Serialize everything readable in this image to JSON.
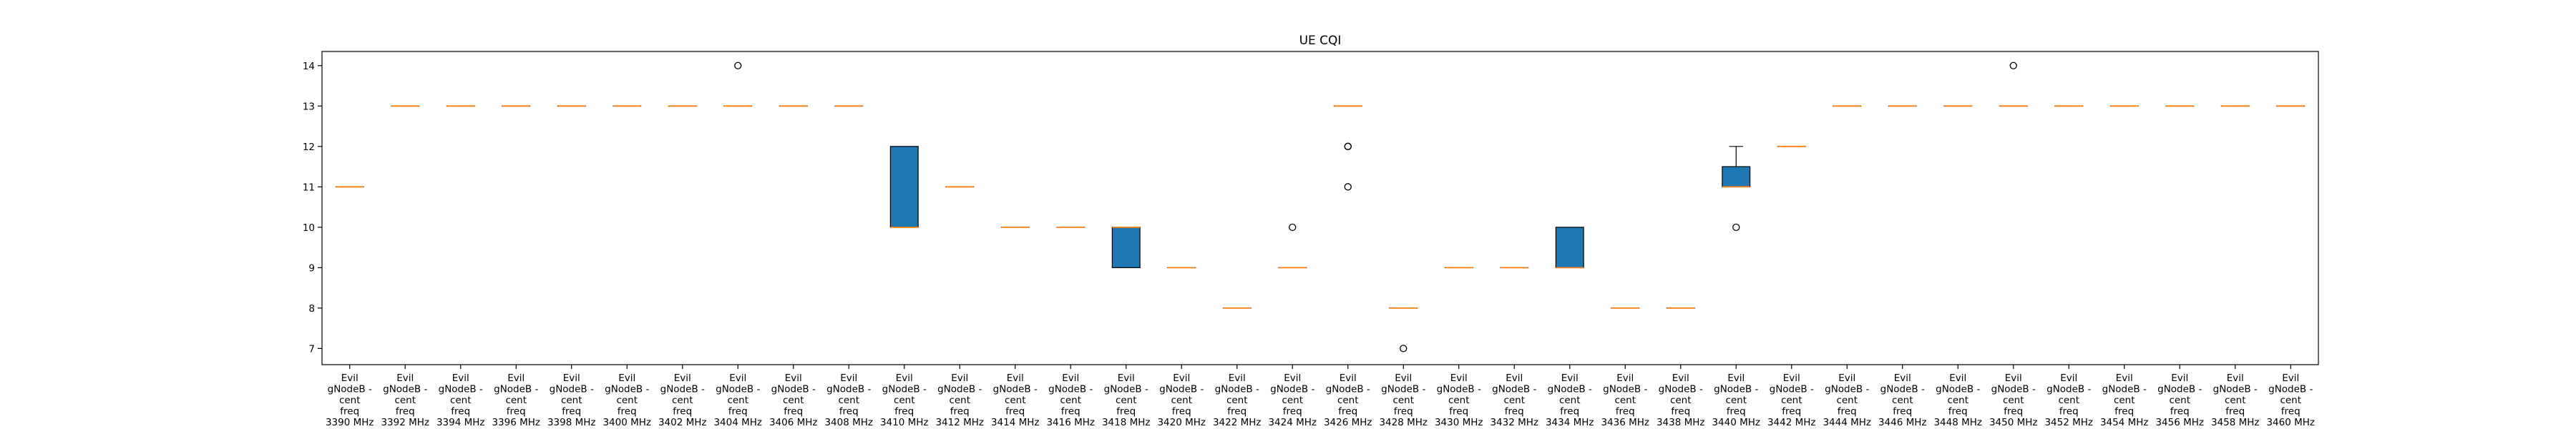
{
  "chart_data": {
    "type": "boxplot",
    "title": "UE CQI",
    "xlabel": "",
    "ylabel": "",
    "ylim": [
      6.6,
      14.35
    ],
    "yticks": [
      7,
      8,
      9,
      10,
      11,
      12,
      13,
      14
    ],
    "grid": false,
    "colors": {
      "box_fill": "#1f77b4",
      "median": "#ff7f0e",
      "whisker": "#000000",
      "flier": "#000000"
    },
    "categories": [
      "Evil gNodeB - cent freq 3390 MHz",
      "Evil gNodeB - cent freq 3392 MHz",
      "Evil gNodeB - cent freq 3394 MHz",
      "Evil gNodeB - cent freq 3396 MHz",
      "Evil gNodeB - cent freq 3398 MHz",
      "Evil gNodeB - cent freq 3400 MHz",
      "Evil gNodeB - cent freq 3402 MHz",
      "Evil gNodeB - cent freq 3404 MHz",
      "Evil gNodeB - cent freq 3406 MHz",
      "Evil gNodeB - cent freq 3408 MHz",
      "Evil gNodeB - cent freq 3410 MHz",
      "Evil gNodeB - cent freq 3412 MHz",
      "Evil gNodeB - cent freq 3414 MHz",
      "Evil gNodeB - cent freq 3416 MHz",
      "Evil gNodeB - cent freq 3418 MHz",
      "Evil gNodeB - cent freq 3420 MHz",
      "Evil gNodeB - cent freq 3422 MHz",
      "Evil gNodeB - cent freq 3424 MHz",
      "Evil gNodeB - cent freq 3426 MHz",
      "Evil gNodeB - cent freq 3428 MHz",
      "Evil gNodeB - cent freq 3430 MHz",
      "Evil gNodeB - cent freq 3432 MHz",
      "Evil gNodeB - cent freq 3434 MHz",
      "Evil gNodeB - cent freq 3436 MHz",
      "Evil gNodeB - cent freq 3438 MHz",
      "Evil gNodeB - cent freq 3440 MHz",
      "Evil gNodeB - cent freq 3442 MHz",
      "Evil gNodeB - cent freq 3444 MHz",
      "Evil gNodeB - cent freq 3446 MHz",
      "Evil gNodeB - cent freq 3448 MHz",
      "Evil gNodeB - cent freq 3450 MHz",
      "Evil gNodeB - cent freq 3452 MHz",
      "Evil gNodeB - cent freq 3454 MHz",
      "Evil gNodeB - cent freq 3456 MHz",
      "Evil gNodeB - cent freq 3458 MHz",
      "Evil gNodeB - cent freq 3460 MHz"
    ],
    "tick_label_lines": [
      "Evil",
      "gNodeB -",
      "cent",
      "freq"
    ],
    "tick_label_freqs": [
      "3390 MHz",
      "3392 MHz",
      "3394 MHz",
      "3396 MHz",
      "3398 MHz",
      "3400 MHz",
      "3402 MHz",
      "3404 MHz",
      "3406 MHz",
      "3408 MHz",
      "3410 MHz",
      "3412 MHz",
      "3414 MHz",
      "3416 MHz",
      "3418 MHz",
      "3420 MHz",
      "3422 MHz",
      "3424 MHz",
      "3426 MHz",
      "3428 MHz",
      "3430 MHz",
      "3432 MHz",
      "3434 MHz",
      "3436 MHz",
      "3438 MHz",
      "3440 MHz",
      "3442 MHz",
      "3444 MHz",
      "3446 MHz",
      "3448 MHz",
      "3450 MHz",
      "3452 MHz",
      "3454 MHz",
      "3456 MHz",
      "3458 MHz",
      "3460 MHz"
    ],
    "boxes": [
      {
        "q1": 11,
        "median": 11,
        "q3": 11,
        "whislo": 11,
        "whishi": 11,
        "fliers": []
      },
      {
        "q1": 13,
        "median": 13,
        "q3": 13,
        "whislo": 13,
        "whishi": 13,
        "fliers": []
      },
      {
        "q1": 13,
        "median": 13,
        "q3": 13,
        "whislo": 13,
        "whishi": 13,
        "fliers": []
      },
      {
        "q1": 13,
        "median": 13,
        "q3": 13,
        "whislo": 13,
        "whishi": 13,
        "fliers": []
      },
      {
        "q1": 13,
        "median": 13,
        "q3": 13,
        "whislo": 13,
        "whishi": 13,
        "fliers": []
      },
      {
        "q1": 13,
        "median": 13,
        "q3": 13,
        "whislo": 13,
        "whishi": 13,
        "fliers": []
      },
      {
        "q1": 13,
        "median": 13,
        "q3": 13,
        "whislo": 13,
        "whishi": 13,
        "fliers": []
      },
      {
        "q1": 13,
        "median": 13,
        "q3": 13,
        "whislo": 13,
        "whishi": 13,
        "fliers": [
          14
        ]
      },
      {
        "q1": 13,
        "median": 13,
        "q3": 13,
        "whislo": 13,
        "whishi": 13,
        "fliers": []
      },
      {
        "q1": 13,
        "median": 13,
        "q3": 13,
        "whislo": 13,
        "whishi": 13,
        "fliers": []
      },
      {
        "q1": 10,
        "median": 10,
        "q3": 12,
        "whislo": 10,
        "whishi": 12,
        "fliers": []
      },
      {
        "q1": 11,
        "median": 11,
        "q3": 11,
        "whislo": 11,
        "whishi": 11,
        "fliers": []
      },
      {
        "q1": 10,
        "median": 10,
        "q3": 10,
        "whislo": 10,
        "whishi": 10,
        "fliers": []
      },
      {
        "q1": 10,
        "median": 10,
        "q3": 10,
        "whislo": 10,
        "whishi": 10,
        "fliers": []
      },
      {
        "q1": 9,
        "median": 10,
        "q3": 10,
        "whislo": 9,
        "whishi": 10,
        "fliers": []
      },
      {
        "q1": 9,
        "median": 9,
        "q3": 9,
        "whislo": 9,
        "whishi": 9,
        "fliers": []
      },
      {
        "q1": 8,
        "median": 8,
        "q3": 8,
        "whislo": 8,
        "whishi": 8,
        "fliers": []
      },
      {
        "q1": 9,
        "median": 9,
        "q3": 9,
        "whislo": 9,
        "whishi": 9,
        "fliers": [
          10
        ]
      },
      {
        "q1": 13,
        "median": 13,
        "q3": 13,
        "whislo": 13,
        "whishi": 13,
        "fliers": [
          11,
          12,
          12
        ]
      },
      {
        "q1": 8,
        "median": 8,
        "q3": 8,
        "whislo": 8,
        "whishi": 8,
        "fliers": [
          7
        ]
      },
      {
        "q1": 9,
        "median": 9,
        "q3": 9,
        "whislo": 9,
        "whishi": 9,
        "fliers": []
      },
      {
        "q1": 9,
        "median": 9,
        "q3": 9,
        "whislo": 9,
        "whishi": 9,
        "fliers": []
      },
      {
        "q1": 9,
        "median": 9,
        "q3": 10,
        "whislo": 9,
        "whishi": 10,
        "fliers": []
      },
      {
        "q1": 8,
        "median": 8,
        "q3": 8,
        "whislo": 8,
        "whishi": 8,
        "fliers": []
      },
      {
        "q1": 8,
        "median": 8,
        "q3": 8,
        "whislo": 8,
        "whishi": 8,
        "fliers": []
      },
      {
        "q1": 11,
        "median": 11,
        "q3": 11.5,
        "whislo": 11,
        "whishi": 12,
        "fliers": [
          10
        ]
      },
      {
        "q1": 12,
        "median": 12,
        "q3": 12,
        "whislo": 12,
        "whishi": 12,
        "fliers": []
      },
      {
        "q1": 13,
        "median": 13,
        "q3": 13,
        "whislo": 13,
        "whishi": 13,
        "fliers": []
      },
      {
        "q1": 13,
        "median": 13,
        "q3": 13,
        "whislo": 13,
        "whishi": 13,
        "fliers": []
      },
      {
        "q1": 13,
        "median": 13,
        "q3": 13,
        "whislo": 13,
        "whishi": 13,
        "fliers": []
      },
      {
        "q1": 13,
        "median": 13,
        "q3": 13,
        "whislo": 13,
        "whishi": 13,
        "fliers": [
          14
        ]
      },
      {
        "q1": 13,
        "median": 13,
        "q3": 13,
        "whislo": 13,
        "whishi": 13,
        "fliers": []
      },
      {
        "q1": 13,
        "median": 13,
        "q3": 13,
        "whislo": 13,
        "whishi": 13,
        "fliers": []
      },
      {
        "q1": 13,
        "median": 13,
        "q3": 13,
        "whislo": 13,
        "whishi": 13,
        "fliers": []
      },
      {
        "q1": 13,
        "median": 13,
        "q3": 13,
        "whislo": 13,
        "whishi": 13,
        "fliers": []
      },
      {
        "q1": 13,
        "median": 13,
        "q3": 13,
        "whislo": 13,
        "whishi": 13,
        "fliers": []
      }
    ]
  }
}
